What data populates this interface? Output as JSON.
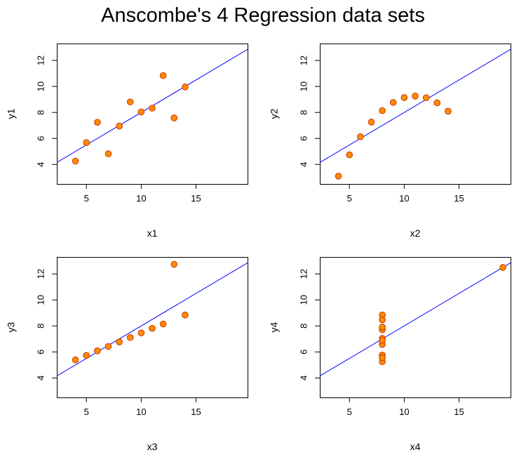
{
  "title": "Anscombe's 4 Regression data sets",
  "colors": {
    "point_fill": "#FF8C00",
    "point_stroke": "#CC3300",
    "line": "#0000FF",
    "axis": "#000000"
  },
  "chart_data": [
    {
      "type": "scatter",
      "xlabel": "x1",
      "ylabel": "y1",
      "xlim": [
        2.3,
        19.7
      ],
      "ylim": [
        2.5,
        13.3
      ],
      "xticks": [
        5,
        10,
        15
      ],
      "yticks": [
        4,
        6,
        8,
        10,
        12
      ],
      "x": [
        10,
        8,
        13,
        9,
        11,
        14,
        6,
        4,
        12,
        7,
        5
      ],
      "y": [
        8.04,
        6.95,
        7.58,
        8.81,
        8.33,
        9.96,
        7.24,
        4.26,
        10.84,
        4.82,
        5.68
      ],
      "regression": {
        "intercept": 3.0,
        "slope": 0.5
      },
      "grid": false
    },
    {
      "type": "scatter",
      "xlabel": "x2",
      "ylabel": "y2",
      "xlim": [
        2.3,
        19.7
      ],
      "ylim": [
        2.5,
        13.3
      ],
      "xticks": [
        5,
        10,
        15
      ],
      "yticks": [
        4,
        6,
        8,
        10,
        12
      ],
      "x": [
        10,
        8,
        13,
        9,
        11,
        14,
        6,
        4,
        12,
        7,
        5
      ],
      "y": [
        9.14,
        8.14,
        8.74,
        8.77,
        9.26,
        8.1,
        6.13,
        3.1,
        9.13,
        7.26,
        4.74
      ],
      "regression": {
        "intercept": 3.0,
        "slope": 0.5
      },
      "grid": false
    },
    {
      "type": "scatter",
      "xlabel": "x3",
      "ylabel": "y3",
      "xlim": [
        2.3,
        19.7
      ],
      "ylim": [
        2.5,
        13.3
      ],
      "xticks": [
        5,
        10,
        15
      ],
      "yticks": [
        4,
        6,
        8,
        10,
        12
      ],
      "x": [
        10,
        8,
        13,
        9,
        11,
        14,
        6,
        4,
        12,
        7,
        5
      ],
      "y": [
        7.46,
        6.77,
        12.74,
        7.11,
        7.81,
        8.84,
        6.08,
        5.39,
        8.15,
        6.42,
        5.73
      ],
      "regression": {
        "intercept": 3.0,
        "slope": 0.5
      },
      "grid": false
    },
    {
      "type": "scatter",
      "xlabel": "x4",
      "ylabel": "y4",
      "xlim": [
        2.3,
        19.7
      ],
      "ylim": [
        2.5,
        13.3
      ],
      "xticks": [
        5,
        10,
        15
      ],
      "yticks": [
        4,
        6,
        8,
        10,
        12
      ],
      "x": [
        8,
        8,
        8,
        8,
        8,
        8,
        8,
        19,
        8,
        8,
        8
      ],
      "y": [
        6.58,
        5.76,
        7.71,
        8.84,
        8.47,
        7.04,
        5.25,
        12.5,
        5.56,
        7.91,
        6.89
      ],
      "regression": {
        "intercept": 3.0,
        "slope": 0.5
      },
      "grid": false
    }
  ]
}
